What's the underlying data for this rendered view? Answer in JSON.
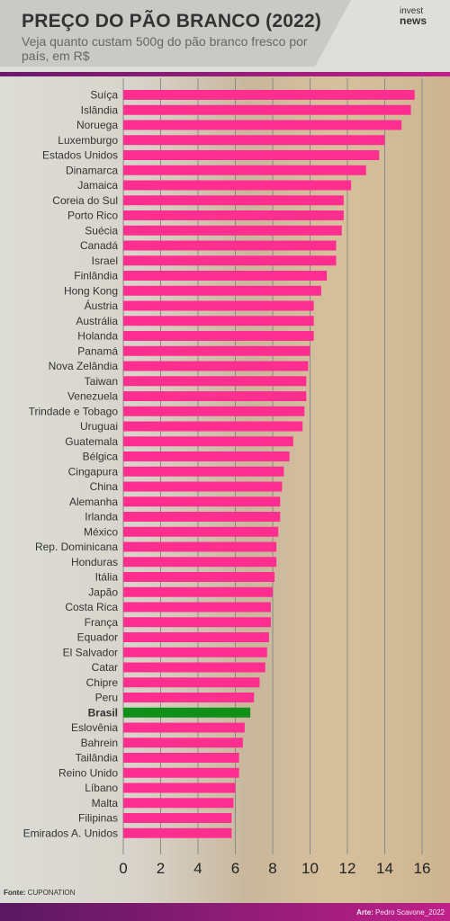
{
  "header": {
    "title": "PREÇO DO PÃO BRANCO (2022)",
    "subtitle": "Veja quanto custam 500g do pão branco fresco por país, em R$",
    "logo_top": "invest",
    "logo_bottom": "news"
  },
  "footer": {
    "source_label": "Fonte:",
    "source": "CUPONATION",
    "credit_label": "Arte:",
    "credit": "Pedro Scavone_2022"
  },
  "colors": {
    "bar": "#ff2e8f",
    "highlight": "#109018",
    "accent": "#b0208a"
  },
  "chart_data": {
    "type": "bar",
    "orientation": "horizontal",
    "title": "PREÇO DO PÃO BRANCO (2022)",
    "subtitle": "Veja quanto custam 500g do pão branco fresco por país, em R$",
    "xlim": [
      0,
      16
    ],
    "xticks": [
      0,
      2,
      4,
      6,
      8,
      10,
      12,
      14,
      16
    ],
    "grid": true,
    "highlight": "Brasil",
    "categories": [
      "Suíça",
      "Islândia",
      "Noruega",
      "Luxemburgo",
      "Estados Unidos",
      "Dinamarca",
      "Jamaica",
      "Coreia do Sul",
      "Porto Rico",
      "Suécia",
      "Canadá",
      "Israel",
      "Finlândia",
      "Hong Kong",
      "Áustria",
      "Austrália",
      "Holanda",
      "Panamá",
      "Nova Zelândia",
      "Taiwan",
      "Venezuela",
      "Trindade e Tobago",
      "Uruguai",
      "Guatemala",
      "Bélgica",
      "Cingapura",
      "China",
      "Alemanha",
      "Irlanda",
      "México",
      "Rep. Dominicana",
      "Honduras",
      "Itália",
      "Japão",
      "Costa Rica",
      "França",
      "Equador",
      "El Salvador",
      "Catar",
      "Chipre",
      "Peru",
      "Brasil",
      "Eslovênia",
      "Bahrein",
      "Tailândia",
      "Reino Unido",
      "Líbano",
      "Malta",
      "Filipinas",
      "Emirados A. Unidos"
    ],
    "values": [
      15.6,
      15.4,
      14.9,
      14.0,
      13.7,
      13.0,
      12.2,
      11.8,
      11.8,
      11.7,
      11.4,
      11.4,
      10.9,
      10.6,
      10.2,
      10.2,
      10.2,
      10.0,
      9.9,
      9.8,
      9.8,
      9.7,
      9.6,
      9.1,
      8.9,
      8.6,
      8.5,
      8.4,
      8.4,
      8.3,
      8.2,
      8.2,
      8.1,
      8.0,
      7.9,
      7.9,
      7.8,
      7.7,
      7.6,
      7.3,
      7.0,
      6.8,
      6.5,
      6.4,
      6.2,
      6.2,
      6.0,
      5.9,
      5.8,
      5.8
    ]
  }
}
